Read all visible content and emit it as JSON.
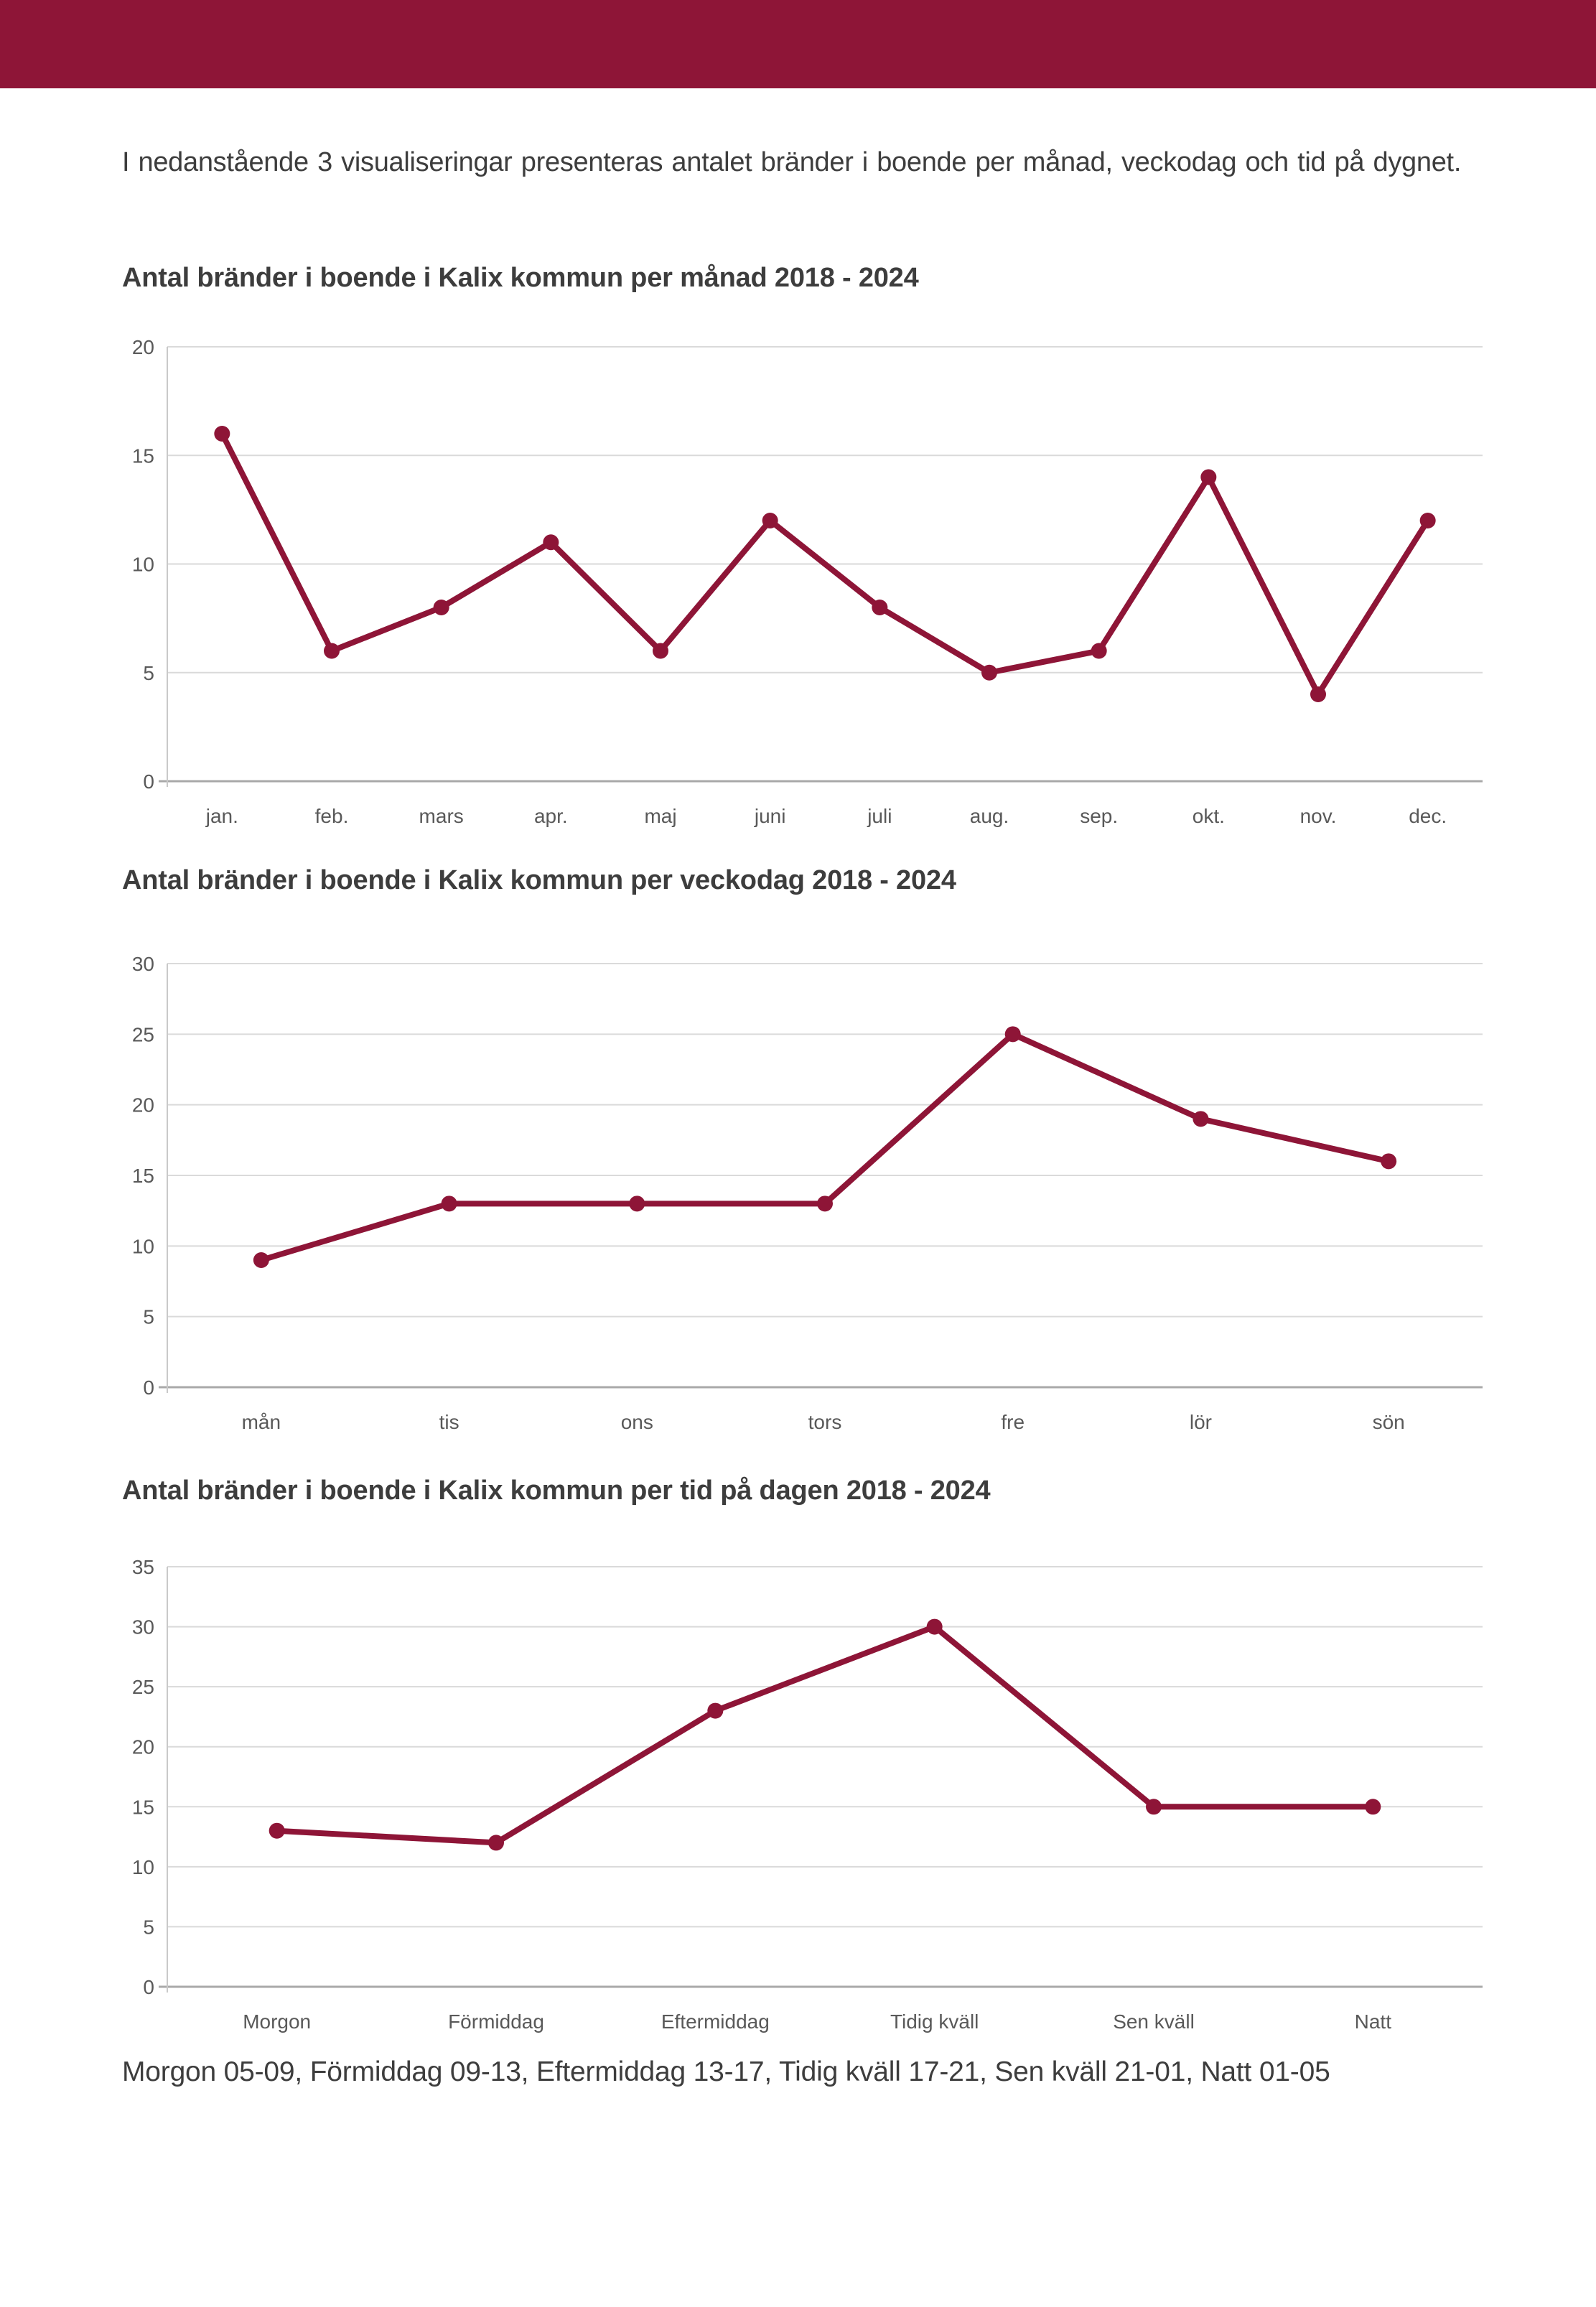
{
  "page": {
    "header_bar_color": "#8E1537",
    "intro_text": "I nedanstående 3 visualiseringar presenteras antalet bränder i boende per månad, veckodag och tid på dygnet.",
    "footnote": "Morgon 05-09, Förmiddag 09-13, Eftermiddag 13-17, Tidig kväll 17-21, Sen kväll 21-01, Natt 01-05"
  },
  "colors": {
    "line": "#8E1537",
    "marker": "#8E1537",
    "grid": "#dadada",
    "axis_x": "#a9a9a9",
    "axis_y": "#c9c9c9",
    "tick_label": "#595959",
    "text": "#3d3d3d"
  },
  "chart_data": [
    {
      "type": "line",
      "title": "Antal bränder i boende i Kalix kommun per månad 2018 - 2024",
      "categories": [
        "jan.",
        "feb.",
        "mars",
        "apr.",
        "maj",
        "juni",
        "juli",
        "aug.",
        "sep.",
        "okt.",
        "nov.",
        "dec."
      ],
      "values": [
        16,
        6,
        8,
        11,
        6,
        12,
        8,
        5,
        6,
        14,
        4,
        12
      ],
      "xlabel": "",
      "ylabel": "",
      "ylim": [
        0,
        20
      ],
      "ytick_step": 5,
      "grid": "horizontal",
      "legend": "none"
    },
    {
      "type": "line",
      "title": "Antal bränder i boende i Kalix kommun per veckodag 2018 - 2024",
      "categories": [
        "mån",
        "tis",
        "ons",
        "tors",
        "fre",
        "lör",
        "sön"
      ],
      "values": [
        9,
        13,
        13,
        13,
        25,
        19,
        16
      ],
      "xlabel": "",
      "ylabel": "",
      "ylim": [
        0,
        30
      ],
      "ytick_step": 5,
      "grid": "horizontal",
      "legend": "none"
    },
    {
      "type": "line",
      "title": "Antal bränder i boende i Kalix kommun per tid på dagen 2018 - 2024",
      "categories": [
        "Morgon",
        "Förmiddag",
        "Eftermiddag",
        "Tidig kväll",
        "Sen kväll",
        "Natt"
      ],
      "values": [
        13,
        12,
        23,
        30,
        15,
        15
      ],
      "xlabel": "",
      "ylabel": "",
      "ylim": [
        0,
        35
      ],
      "ytick_step": 5,
      "grid": "horizontal",
      "legend": "none"
    }
  ]
}
